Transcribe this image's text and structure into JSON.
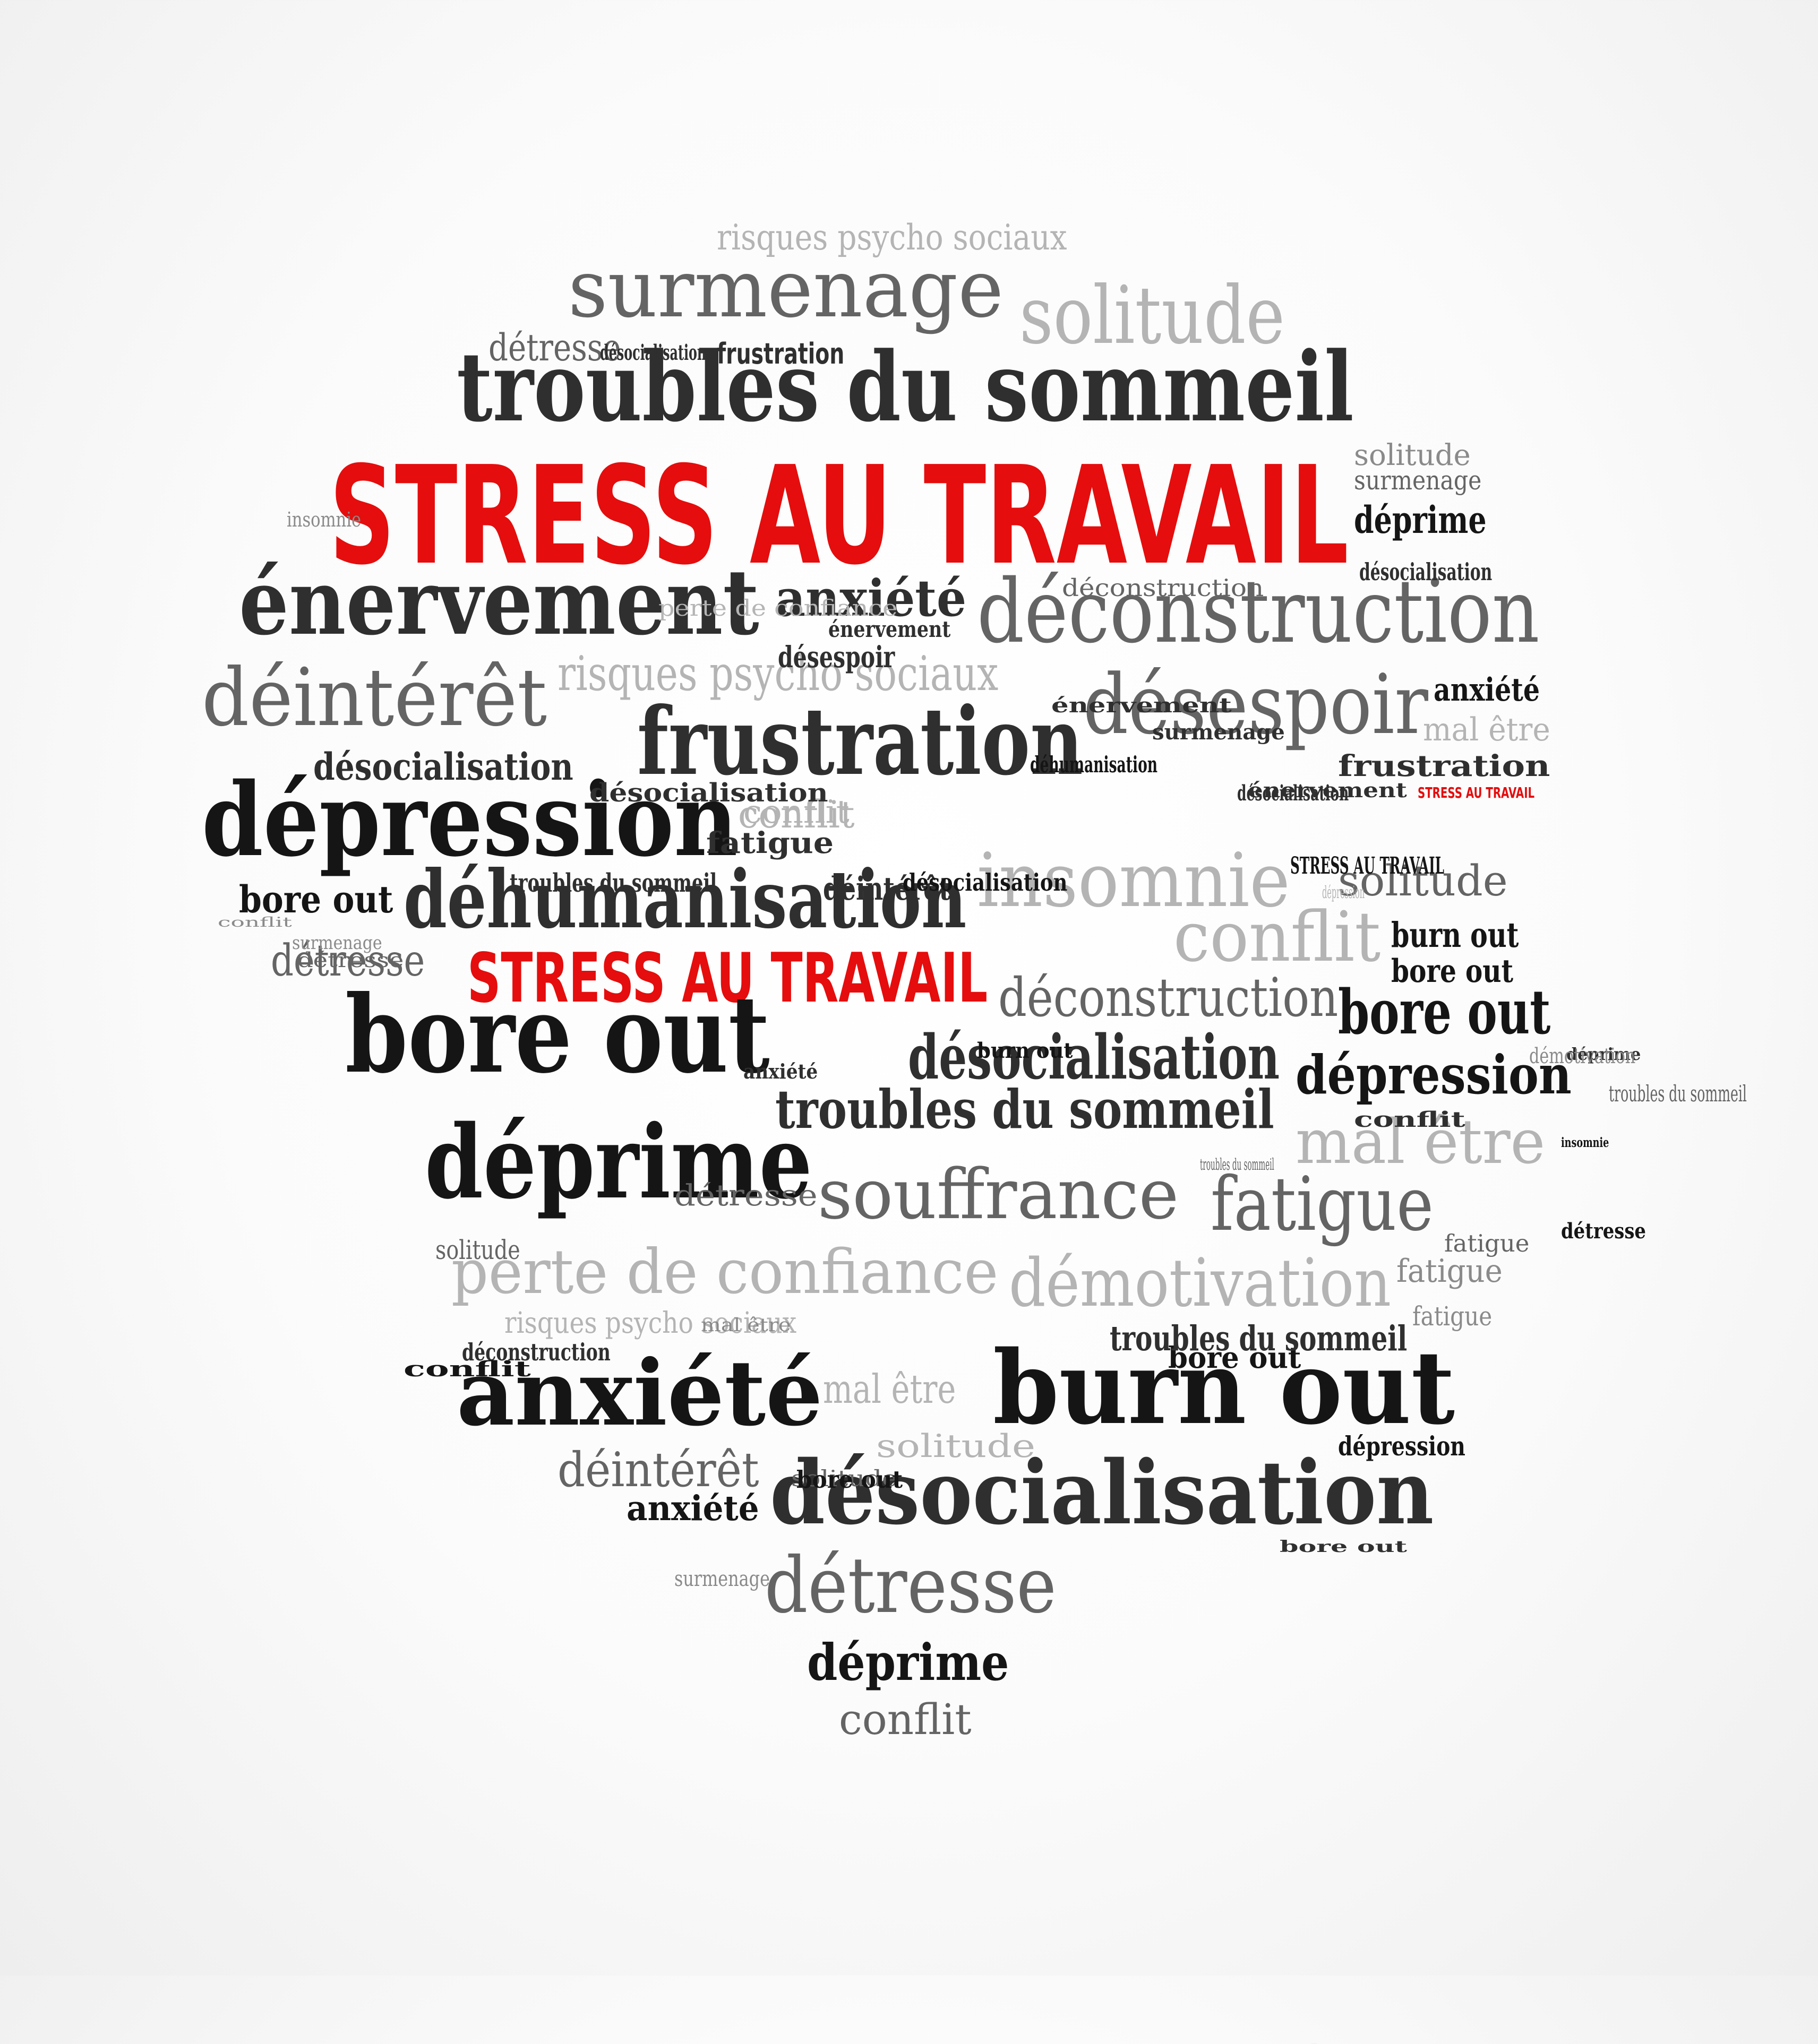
{
  "title": "STRESS AU TRAVAIL",
  "colors": {
    "accent_red": "#e50d0d",
    "black": "#151515",
    "dark_gray": "#2f2f2f",
    "gray": "#646464",
    "mid_gray": "#8a8a8a",
    "light_gray": "#b4b4b4"
  },
  "words": [
    "STRESS AU TRAVAIL",
    "STRESS AU TRAVAIL",
    "STRESS AU TRAVAIL",
    "surmenage",
    "solitude",
    "troubles du sommeil",
    "risques psycho sociaux",
    "détresse",
    "frustration",
    "énervement",
    "anxiété",
    "déconstruction",
    "déintérêt",
    "frustration",
    "désespoir",
    "dépression",
    "désocialisation",
    "risques psycho sociaux",
    "déhumanisation",
    "insomnie",
    "conflit",
    "bore out",
    "bore out",
    "déconstruction",
    "désocialisation",
    "dépression",
    "troubles du sommeil",
    "déprime",
    "mal être",
    "souffrance",
    "fatigue",
    "perte de confiance",
    "démotivation",
    "anxiété",
    "burn out",
    "désocialisation",
    "déintérêt",
    "détresse",
    "déprime",
    "conflit",
    "mal être",
    "conflit",
    "solitude",
    "déprime",
    "anxiété",
    "solitude",
    "surmenage",
    "détresse",
    "burn out",
    "bore out",
    "bore out",
    "risques psycho sociaux",
    "conflit",
    "fatigue",
    "fatigue",
    "déconstruction",
    "mal être",
    "solitude",
    "anxiété",
    "déintérêt",
    "bore out",
    "dépression",
    "troubles du sommeil",
    "troubles du sommeil",
    "désocialisation",
    "détresse",
    "désocialisation",
    "désocialisation",
    "désocialisation",
    "frustration",
    "déprime",
    "détresse",
    "fatigue",
    "surmenage",
    "conflit",
    "insomnie",
    "solitude",
    "désespoir",
    "surmenage",
    "énervement",
    "désocialisation",
    "anxiété",
    "bore out",
    "burn out",
    "conflit",
    "perte de confiance",
    "démotivation",
    "mal être",
    "détresse",
    "solitude",
    "déconstruction",
    "surmenage",
    "fatigue",
    "troubles du sommeil",
    "énervement",
    "déhumanisation",
    "énervement",
    "désocialisation",
    "STRESS AU TRAVAIL",
    "dépression",
    "conflit",
    "insomnie",
    "bore out",
    "troubles du sommeil",
    "fatigue"
  ]
}
